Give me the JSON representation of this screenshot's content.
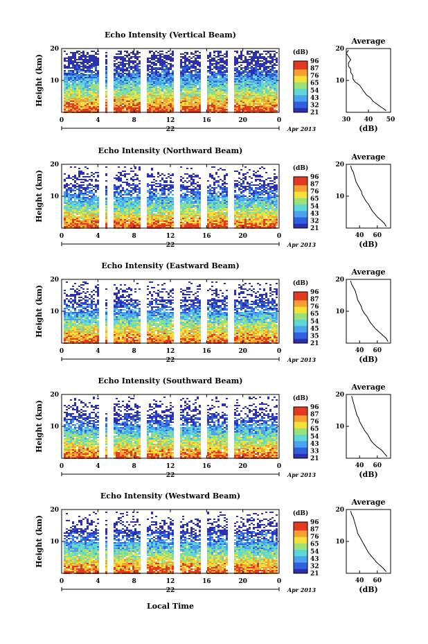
{
  "panels": [
    {
      "title": "Echo Intensity (Vertical Beam)",
      "right_ticks": [
        "30",
        "40",
        "50"
      ]
    },
    {
      "title": "Echo Intensity (Northward Beam)",
      "right_ticks": [
        "40",
        "60"
      ]
    },
    {
      "title": "Echo Intensity (Eastward Beam)",
      "right_ticks": [
        "40",
        "60"
      ]
    },
    {
      "title": "Echo Intensity (Southward Beam)",
      "right_ticks": [
        "40",
        "60"
      ]
    },
    {
      "title": "Echo Intensity (Westward Beam)",
      "right_ticks": [
        "40",
        "60"
      ]
    }
  ],
  "ylabel": "Height (km)",
  "y_ticks": [
    "20",
    "10"
  ],
  "x_ticks": [
    "0",
    "4",
    "8",
    "12",
    "16",
    "20",
    "0"
  ],
  "day_label": "22",
  "date_label": "Apr 2013",
  "xlabel": "Local Time",
  "colorbar": {
    "unit": "(dB)",
    "levels": [
      "96",
      "87",
      "76",
      "65",
      "54",
      "43",
      "32",
      "21"
    ],
    "levels_east": [
      "96",
      "87",
      "76",
      "65",
      "54",
      "45",
      "35",
      "21"
    ],
    "levels_south": [
      "96",
      "87",
      "76",
      "65",
      "54",
      "43",
      "33",
      "21"
    ]
  },
  "profile": {
    "title": "Average",
    "xlabel": "(dB)",
    "y_ticks": [
      "20",
      "10"
    ]
  },
  "colors": {
    "scale": [
      "#2b2fb0",
      "#3060e0",
      "#4aa3ef",
      "#5ed8d6",
      "#9ce07a",
      "#f4e23a",
      "#f5a030",
      "#e23a22"
    ]
  },
  "chart_data": [
    {
      "type": "heatmap",
      "title": "Echo Intensity (Vertical Beam)",
      "x_range": [
        0,
        24
      ],
      "y_range": [
        0,
        20
      ],
      "xlabel": "",
      "ylabel": "Height (km)",
      "unit": "dB",
      "color_range": [
        21,
        96
      ],
      "average_profile": {
        "x_range": [
          30,
          50
        ],
        "values_dB": [
          48,
          46,
          44,
          42,
          41,
          39,
          38,
          37,
          36,
          34,
          33,
          33,
          32,
          32,
          31,
          31,
          32,
          31,
          30,
          31
        ]
      }
    },
    {
      "type": "heatmap",
      "title": "Echo Intensity (Northward Beam)",
      "x_range": [
        0,
        24
      ],
      "y_range": [
        0,
        20
      ],
      "xlabel": "",
      "ylabel": "Height (km)",
      "unit": "dB",
      "color_range": [
        21,
        96
      ],
      "average_profile": {
        "x_range": [
          25,
          75
        ],
        "values_dB": [
          70,
          68,
          64,
          60,
          57,
          54,
          52,
          50,
          47,
          45,
          43,
          42,
          40,
          38,
          36,
          35,
          34,
          33,
          31,
          30
        ]
      }
    },
    {
      "type": "heatmap",
      "title": "Echo Intensity (Eastward Beam)",
      "x_range": [
        0,
        24
      ],
      "y_range": [
        0,
        20
      ],
      "xlabel": "",
      "ylabel": "Height (km)",
      "unit": "dB",
      "color_range": [
        21,
        96
      ],
      "average_profile": {
        "x_range": [
          25,
          75
        ],
        "values_dB": [
          72,
          70,
          66,
          62,
          58,
          55,
          52,
          50,
          48,
          45,
          43,
          42,
          40,
          38,
          37,
          36,
          35,
          33,
          31,
          30
        ]
      }
    },
    {
      "type": "heatmap",
      "title": "Echo Intensity (Southward Beam)",
      "x_range": [
        0,
        24
      ],
      "y_range": [
        0,
        20
      ],
      "xlabel": "",
      "ylabel": "Height (km)",
      "unit": "dB",
      "color_range": [
        21,
        96
      ],
      "average_profile": {
        "x_range": [
          25,
          75
        ],
        "values_dB": [
          71,
          68,
          65,
          60,
          56,
          53,
          51,
          49,
          46,
          44,
          42,
          40,
          39,
          37,
          36,
          35,
          34,
          33,
          32,
          31
        ]
      }
    },
    {
      "type": "heatmap",
      "title": "Echo Intensity (Westward Beam)",
      "x_range": [
        0,
        24
      ],
      "y_range": [
        0,
        20
      ],
      "xlabel": "Local Time",
      "ylabel": "Height (km)",
      "unit": "dB",
      "color_range": [
        21,
        96
      ],
      "average_profile": {
        "x_range": [
          25,
          75
        ],
        "values_dB": [
          70,
          67,
          63,
          59,
          56,
          53,
          50,
          48,
          46,
          44,
          42,
          40,
          38,
          37,
          36,
          35,
          34,
          33,
          31,
          30
        ]
      }
    }
  ]
}
